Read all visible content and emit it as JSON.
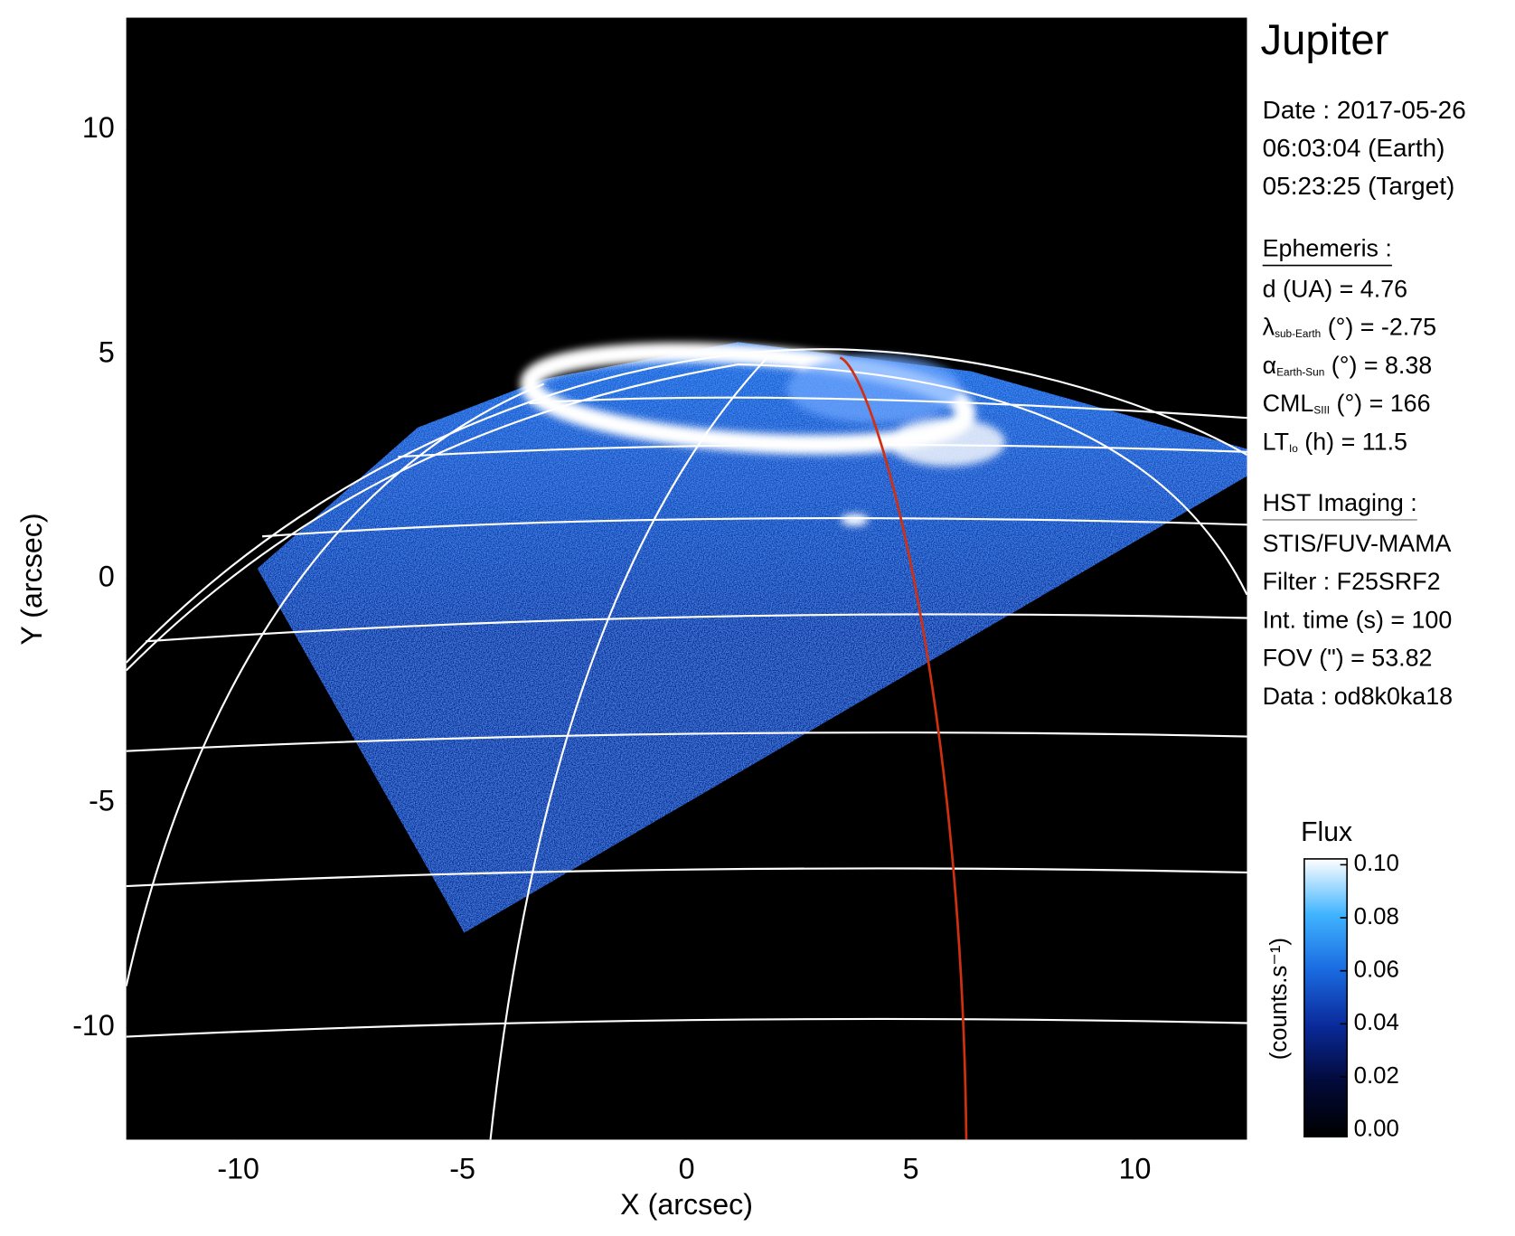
{
  "chart_data": {
    "type": "image",
    "title": "Jupiter",
    "xlabel": "X (arcsec)",
    "ylabel": "Y (arcsec)",
    "xlim": [
      -12.5,
      12.5
    ],
    "ylim": [
      -12.5,
      12.5
    ],
    "xticks": [
      -10,
      -5,
      0,
      5,
      10
    ],
    "yticks": [
      -10,
      -5,
      0,
      5,
      10
    ],
    "colormap": [
      "#000000",
      "#020a3a",
      "#0a2a9a",
      "#1a6ae0",
      "#40b4ff",
      "#ffffff"
    ],
    "colorbar": {
      "title": "Flux",
      "label": "(counts.s⁻¹)",
      "lim": [
        0,
        0.1
      ],
      "ticks": [
        {
          "value": 0,
          "label": "0.00"
        },
        0.02,
        0.04,
        0.06,
        0.08,
        {
          "value": 0.1,
          "label": "0.10"
        }
      ]
    },
    "info": {
      "date": [
        "Date : 2017-05-26",
        "06:03:04 (Earth)",
        "05:23:25 (Target)"
      ],
      "ephemeris": {
        "heading": "Ephemeris :",
        "rows": [
          {
            "main": "d (UA)    = 4.76"
          },
          {
            "main": "λ",
            "sub": "sub-Earth",
            "post": " (°) = -2.75"
          },
          {
            "main": "α",
            "sub": "Earth-Sun",
            "post": " (°) = 8.38"
          },
          {
            "main": "CML",
            "sub": "SIII",
            "post": " (°) = 166"
          },
          {
            "main": "LT",
            "sub": "Io",
            "post": " (h) = 11.5"
          }
        ]
      },
      "imaging": {
        "heading": "HST Imaging :",
        "rows": [
          "STIS/FUV-MAMA",
          "Filter : F25SRF2",
          "Int. time (s) = 100",
          "FOV (\") = 53.82",
          "Data : od8k0ka18"
        ]
      }
    }
  }
}
